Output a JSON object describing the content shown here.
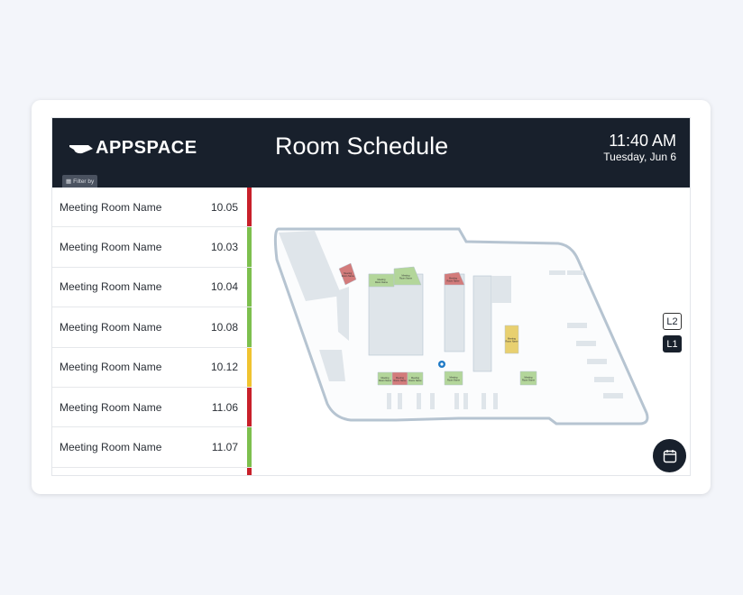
{
  "header": {
    "logo": "APPSPACE",
    "title": "Room Schedule",
    "time": "11:40 AM",
    "date": "Tuesday, Jun 6",
    "filter_label": "Filter by"
  },
  "status_colors": {
    "busy": "#c8202a",
    "free": "#7dbf4e",
    "pending": "#f0c330"
  },
  "rooms": [
    {
      "name": "Meeting Room Name",
      "number": "10.05",
      "status": "busy"
    },
    {
      "name": "Meeting Room Name",
      "number": "10.03",
      "status": "free"
    },
    {
      "name": "Meeting Room Name",
      "number": "10.04",
      "status": "free"
    },
    {
      "name": "Meeting Room Name",
      "number": "10.08",
      "status": "free"
    },
    {
      "name": "Meeting Room Name",
      "number": "10.12",
      "status": "pending"
    },
    {
      "name": "Meeting Room Name",
      "number": "11.06",
      "status": "busy"
    },
    {
      "name": "Meeting Room Name",
      "number": "11.07",
      "status": "free"
    },
    {
      "name": "",
      "number": "",
      "status": "busy"
    }
  ],
  "map": {
    "room_label": "Meeting Room Name",
    "levels": [
      "L2",
      "L1"
    ],
    "active_level": "L1"
  },
  "icons": {
    "filter": "filter-icon",
    "calendar": "calendar-icon",
    "location": "location-pin-icon"
  }
}
